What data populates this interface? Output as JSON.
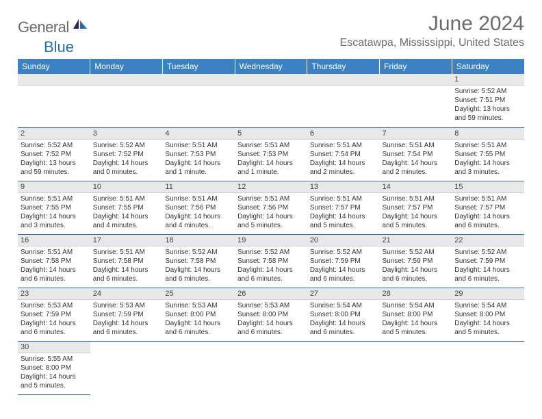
{
  "brand": {
    "text_gray": "General",
    "text_blue": "Blue"
  },
  "title": "June 2024",
  "location": "Escatawpa, Mississippi, United States",
  "colors": {
    "header_bg": "#3b82c4",
    "header_text": "#ffffff",
    "daynum_bg": "#e8e8e8",
    "row_border": "#3b6ea5",
    "body_text": "#333333",
    "title_text": "#6b6b6b",
    "logo_blue": "#1f6fb2"
  },
  "day_headers": [
    "Sunday",
    "Monday",
    "Tuesday",
    "Wednesday",
    "Thursday",
    "Friday",
    "Saturday"
  ],
  "weeks": [
    [
      null,
      null,
      null,
      null,
      null,
      null,
      {
        "n": "1",
        "sr": "Sunrise: 5:52 AM",
        "ss": "Sunset: 7:51 PM",
        "dl": "Daylight: 13 hours and 59 minutes."
      }
    ],
    [
      {
        "n": "2",
        "sr": "Sunrise: 5:52 AM",
        "ss": "Sunset: 7:52 PM",
        "dl": "Daylight: 13 hours and 59 minutes."
      },
      {
        "n": "3",
        "sr": "Sunrise: 5:52 AM",
        "ss": "Sunset: 7:52 PM",
        "dl": "Daylight: 14 hours and 0 minutes."
      },
      {
        "n": "4",
        "sr": "Sunrise: 5:51 AM",
        "ss": "Sunset: 7:53 PM",
        "dl": "Daylight: 14 hours and 1 minute."
      },
      {
        "n": "5",
        "sr": "Sunrise: 5:51 AM",
        "ss": "Sunset: 7:53 PM",
        "dl": "Daylight: 14 hours and 1 minute."
      },
      {
        "n": "6",
        "sr": "Sunrise: 5:51 AM",
        "ss": "Sunset: 7:54 PM",
        "dl": "Daylight: 14 hours and 2 minutes."
      },
      {
        "n": "7",
        "sr": "Sunrise: 5:51 AM",
        "ss": "Sunset: 7:54 PM",
        "dl": "Daylight: 14 hours and 2 minutes."
      },
      {
        "n": "8",
        "sr": "Sunrise: 5:51 AM",
        "ss": "Sunset: 7:55 PM",
        "dl": "Daylight: 14 hours and 3 minutes."
      }
    ],
    [
      {
        "n": "9",
        "sr": "Sunrise: 5:51 AM",
        "ss": "Sunset: 7:55 PM",
        "dl": "Daylight: 14 hours and 3 minutes."
      },
      {
        "n": "10",
        "sr": "Sunrise: 5:51 AM",
        "ss": "Sunset: 7:55 PM",
        "dl": "Daylight: 14 hours and 4 minutes."
      },
      {
        "n": "11",
        "sr": "Sunrise: 5:51 AM",
        "ss": "Sunset: 7:56 PM",
        "dl": "Daylight: 14 hours and 4 minutes."
      },
      {
        "n": "12",
        "sr": "Sunrise: 5:51 AM",
        "ss": "Sunset: 7:56 PM",
        "dl": "Daylight: 14 hours and 5 minutes."
      },
      {
        "n": "13",
        "sr": "Sunrise: 5:51 AM",
        "ss": "Sunset: 7:57 PM",
        "dl": "Daylight: 14 hours and 5 minutes."
      },
      {
        "n": "14",
        "sr": "Sunrise: 5:51 AM",
        "ss": "Sunset: 7:57 PM",
        "dl": "Daylight: 14 hours and 5 minutes."
      },
      {
        "n": "15",
        "sr": "Sunrise: 5:51 AM",
        "ss": "Sunset: 7:57 PM",
        "dl": "Daylight: 14 hours and 6 minutes."
      }
    ],
    [
      {
        "n": "16",
        "sr": "Sunrise: 5:51 AM",
        "ss": "Sunset: 7:58 PM",
        "dl": "Daylight: 14 hours and 6 minutes."
      },
      {
        "n": "17",
        "sr": "Sunrise: 5:51 AM",
        "ss": "Sunset: 7:58 PM",
        "dl": "Daylight: 14 hours and 6 minutes."
      },
      {
        "n": "18",
        "sr": "Sunrise: 5:52 AM",
        "ss": "Sunset: 7:58 PM",
        "dl": "Daylight: 14 hours and 6 minutes."
      },
      {
        "n": "19",
        "sr": "Sunrise: 5:52 AM",
        "ss": "Sunset: 7:58 PM",
        "dl": "Daylight: 14 hours and 6 minutes."
      },
      {
        "n": "20",
        "sr": "Sunrise: 5:52 AM",
        "ss": "Sunset: 7:59 PM",
        "dl": "Daylight: 14 hours and 6 minutes."
      },
      {
        "n": "21",
        "sr": "Sunrise: 5:52 AM",
        "ss": "Sunset: 7:59 PM",
        "dl": "Daylight: 14 hours and 6 minutes."
      },
      {
        "n": "22",
        "sr": "Sunrise: 5:52 AM",
        "ss": "Sunset: 7:59 PM",
        "dl": "Daylight: 14 hours and 6 minutes."
      }
    ],
    [
      {
        "n": "23",
        "sr": "Sunrise: 5:53 AM",
        "ss": "Sunset: 7:59 PM",
        "dl": "Daylight: 14 hours and 6 minutes."
      },
      {
        "n": "24",
        "sr": "Sunrise: 5:53 AM",
        "ss": "Sunset: 7:59 PM",
        "dl": "Daylight: 14 hours and 6 minutes."
      },
      {
        "n": "25",
        "sr": "Sunrise: 5:53 AM",
        "ss": "Sunset: 8:00 PM",
        "dl": "Daylight: 14 hours and 6 minutes."
      },
      {
        "n": "26",
        "sr": "Sunrise: 5:53 AM",
        "ss": "Sunset: 8:00 PM",
        "dl": "Daylight: 14 hours and 6 minutes."
      },
      {
        "n": "27",
        "sr": "Sunrise: 5:54 AM",
        "ss": "Sunset: 8:00 PM",
        "dl": "Daylight: 14 hours and 6 minutes."
      },
      {
        "n": "28",
        "sr": "Sunrise: 5:54 AM",
        "ss": "Sunset: 8:00 PM",
        "dl": "Daylight: 14 hours and 5 minutes."
      },
      {
        "n": "29",
        "sr": "Sunrise: 5:54 AM",
        "ss": "Sunset: 8:00 PM",
        "dl": "Daylight: 14 hours and 5 minutes."
      }
    ],
    [
      {
        "n": "30",
        "sr": "Sunrise: 5:55 AM",
        "ss": "Sunset: 8:00 PM",
        "dl": "Daylight: 14 hours and 5 minutes."
      },
      null,
      null,
      null,
      null,
      null,
      null
    ]
  ]
}
